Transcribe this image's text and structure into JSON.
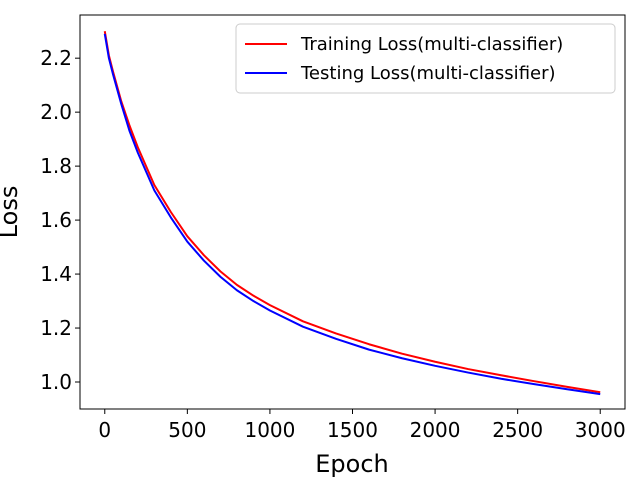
{
  "chart_data": {
    "type": "line",
    "title": "",
    "xlabel": "Epoch",
    "ylabel": "Loss",
    "xlim": [
      -150,
      3150
    ],
    "ylim": [
      0.9,
      2.36
    ],
    "xticks": [
      0,
      500,
      1000,
      1500,
      2000,
      2500,
      3000
    ],
    "xtick_labels": [
      "0",
      "500",
      "1000",
      "1500",
      "2000",
      "2500",
      "3000"
    ],
    "yticks": [
      1.0,
      1.2,
      1.4,
      1.6,
      1.8,
      2.0,
      2.2
    ],
    "ytick_labels": [
      "1.0",
      "1.2",
      "1.4",
      "1.6",
      "1.8",
      "2.0",
      "2.2"
    ],
    "grid": false,
    "legend_position": "top-right",
    "series": [
      {
        "name": "Training Loss(multi-classifier)",
        "color": "#ff0000",
        "x": [
          0,
          25,
          50,
          100,
          150,
          200,
          250,
          300,
          400,
          500,
          600,
          700,
          800,
          900,
          1000,
          1200,
          1400,
          1600,
          1800,
          2000,
          2200,
          2400,
          2600,
          2800,
          3000
        ],
        "y": [
          2.3,
          2.21,
          2.15,
          2.04,
          1.95,
          1.87,
          1.8,
          1.73,
          1.63,
          1.54,
          1.47,
          1.41,
          1.36,
          1.32,
          1.285,
          1.225,
          1.18,
          1.14,
          1.105,
          1.075,
          1.048,
          1.025,
          1.003,
          0.982,
          0.962
        ]
      },
      {
        "name": "Testing Loss(multi-classifier)",
        "color": "#0000ff",
        "x": [
          0,
          25,
          50,
          100,
          150,
          200,
          250,
          300,
          400,
          500,
          600,
          700,
          800,
          900,
          1000,
          1200,
          1400,
          1600,
          1800,
          2000,
          2200,
          2400,
          2600,
          2800,
          3000
        ],
        "y": [
          2.29,
          2.2,
          2.14,
          2.03,
          1.93,
          1.85,
          1.78,
          1.71,
          1.61,
          1.52,
          1.45,
          1.39,
          1.34,
          1.3,
          1.265,
          1.205,
          1.16,
          1.12,
          1.088,
          1.06,
          1.035,
          1.012,
          0.992,
          0.973,
          0.955
        ]
      }
    ]
  }
}
